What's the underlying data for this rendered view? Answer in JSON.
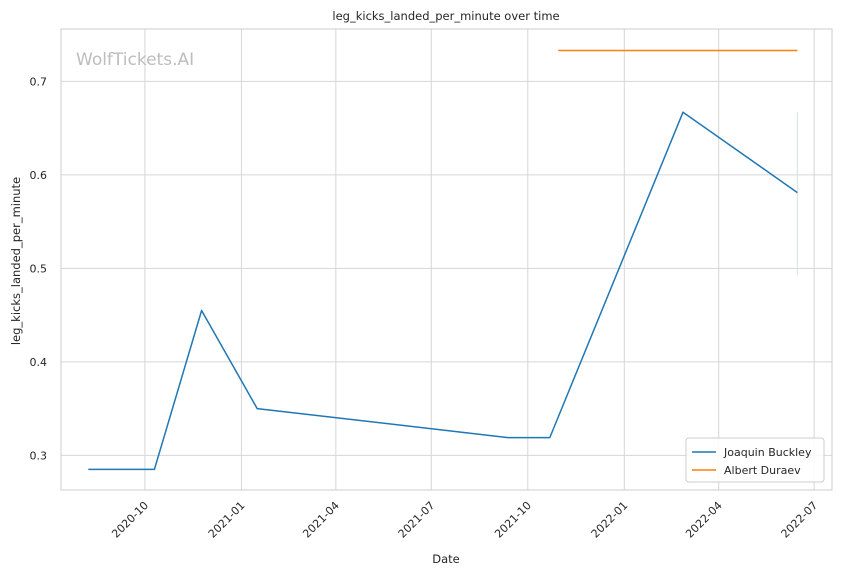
{
  "chart_data": {
    "type": "line",
    "title": "leg_kicks_landed_per_minute over time",
    "xlabel": "Date",
    "ylabel": "leg_kicks_landed_per_minute",
    "watermark": "WolfTickets.AI",
    "x_ticks": [
      "2020-10",
      "2021-01",
      "2021-04",
      "2021-07",
      "2021-10",
      "2022-01",
      "2022-04",
      "2022-07"
    ],
    "y_ticks": [
      "0.3",
      "0.4",
      "0.5",
      "0.6",
      "0.7"
    ],
    "xlim": [
      "2020-07-13",
      "2022-07-18"
    ],
    "ylim": [
      0.263,
      0.756
    ],
    "grid": true,
    "legend_position": "bottom-right",
    "series": [
      {
        "name": "Joaquin Buckley",
        "color": "#1f77b4",
        "points": [
          {
            "x": "2020-08-08",
            "y": 0.285
          },
          {
            "x": "2020-10-10",
            "y": 0.285
          },
          {
            "x": "2020-11-24",
            "y": 0.455
          },
          {
            "x": "2021-01-16",
            "y": 0.35
          },
          {
            "x": "2021-09-12",
            "y": 0.319
          },
          {
            "x": "2021-10-22",
            "y": 0.319
          },
          {
            "x": "2022-02-26",
            "y": 0.667
          },
          {
            "x": "2022-06-15",
            "y": 0.581
          }
        ]
      },
      {
        "name": "Albert Duraev",
        "color": "#ff7f0e",
        "points": [
          {
            "x": "2021-10-30",
            "y": 0.733
          },
          {
            "x": "2022-06-15",
            "y": 0.733
          }
        ]
      }
    ],
    "annotations": [
      {
        "type": "vertical-segment",
        "x": "2022-06-15",
        "y_range": [
          0.493,
          0.667
        ],
        "color": "#cfe8df"
      }
    ]
  }
}
